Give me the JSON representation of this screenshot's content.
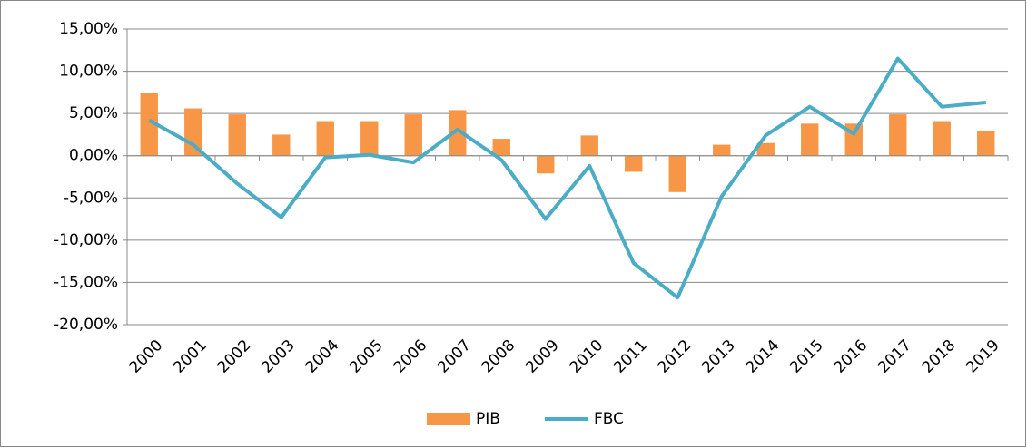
{
  "chart_data": {
    "type": "bar_line",
    "categories": [
      "2000",
      "2001",
      "2002",
      "2003",
      "2004",
      "2005",
      "2006",
      "2007",
      "2008",
      "2009",
      "2010",
      "2011",
      "2012",
      "2013",
      "2014",
      "2015",
      "2016",
      "2017",
      "2018",
      "2019"
    ],
    "series": [
      {
        "name": "PIB",
        "type": "bar",
        "color": "#f79646",
        "values": [
          7.4,
          5.6,
          4.9,
          2.5,
          4.1,
          4.1,
          4.9,
          5.4,
          2.0,
          -2.1,
          2.4,
          -1.9,
          -4.3,
          1.3,
          1.5,
          3.8,
          3.8,
          4.9,
          4.1,
          2.9
        ]
      },
      {
        "name": "FBC",
        "type": "line",
        "color": "#4bacc6",
        "values": [
          4.2,
          1.3,
          -3.3,
          -7.3,
          -0.2,
          0.1,
          -0.8,
          3.1,
          -0.5,
          -7.5,
          -1.2,
          -12.7,
          -16.8,
          -4.8,
          2.4,
          5.8,
          2.6,
          11.5,
          5.8,
          6.3
        ]
      }
    ],
    "ylim": [
      -20,
      15
    ],
    "yticks": [
      {
        "value": 15,
        "label": "15,00%"
      },
      {
        "value": 10,
        "label": "10,00%"
      },
      {
        "value": 5,
        "label": "5,00%"
      },
      {
        "value": 0,
        "label": "0,00%"
      },
      {
        "value": -5,
        "label": "-5,00%"
      },
      {
        "value": -10,
        "label": "-10,00%"
      },
      {
        "value": -15,
        "label": "-15,00%"
      },
      {
        "value": -20,
        "label": "-20,00%"
      }
    ],
    "grid": true,
    "legend": "bottom"
  }
}
